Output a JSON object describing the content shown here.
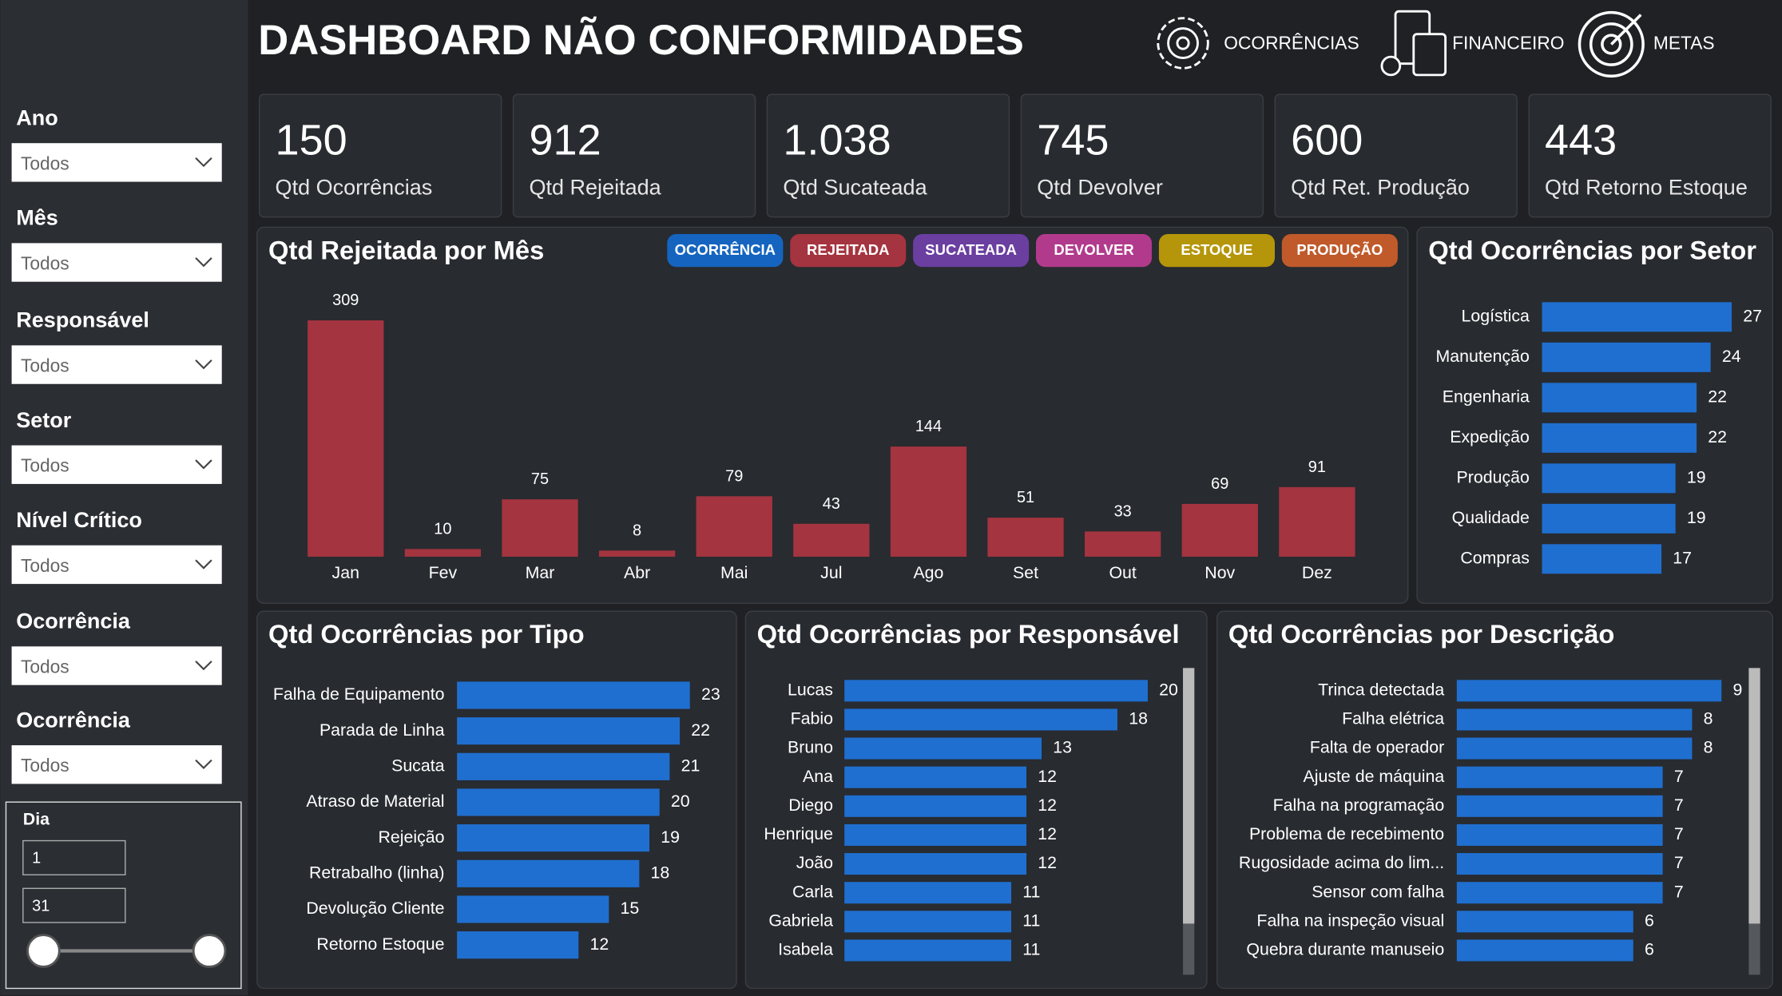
{
  "header": {
    "title": "DASHBOARD NÃO CONFORMIDADES",
    "nav": [
      "OCORRÊNCIAS",
      "FINANCEIRO",
      "METAS"
    ]
  },
  "filters": [
    {
      "label": "Ano",
      "value": "Todos"
    },
    {
      "label": "Mês",
      "value": "Todos"
    },
    {
      "label": "Responsável",
      "value": "Todos"
    },
    {
      "label": "Setor",
      "value": "Todos"
    },
    {
      "label": "Nível Crítico",
      "value": "Todos"
    },
    {
      "label": "Ocorrência",
      "value": "Todos"
    },
    {
      "label": "Ocorrência",
      "value": "Todos"
    }
  ],
  "day_filter": {
    "label": "Dia",
    "min": "1",
    "max": "31"
  },
  "kpis": [
    {
      "value": "150",
      "label": "Qtd Ocorrências"
    },
    {
      "value": "912",
      "label": "Qtd Rejeitada"
    },
    {
      "value": "1.038",
      "label": "Qtd Sucateada"
    },
    {
      "value": "745",
      "label": "Qtd Devolver"
    },
    {
      "value": "600",
      "label": "Qtd Ret. Produção"
    },
    {
      "value": "443",
      "label": "Qtd Retorno Estoque"
    }
  ],
  "chart_data": [
    {
      "type": "bar",
      "title": "Qtd Rejeitada por Mês",
      "categories": [
        "Jan",
        "Fev",
        "Mar",
        "Abr",
        "Mai",
        "Jul",
        "Ago",
        "Set",
        "Out",
        "Nov",
        "Dez"
      ],
      "values": [
        309,
        10,
        75,
        8,
        79,
        43,
        144,
        51,
        33,
        69,
        91
      ],
      "color": "#a4343f",
      "buttons": [
        {
          "label": "OCORRÊNCIA",
          "color": "#1565c0"
        },
        {
          "label": "REJEITADA",
          "color": "#a4343f"
        },
        {
          "label": "SUCATEADA",
          "color": "#6a3fa0"
        },
        {
          "label": "DEVOLVER",
          "color": "#b23a8c"
        },
        {
          "label": "ESTOQUE",
          "color": "#b5960a"
        },
        {
          "label": "PRODUÇÃO",
          "color": "#c05a2a"
        }
      ]
    },
    {
      "type": "barh",
      "title": "Qtd Ocorrências por Setor",
      "categories": [
        "Logística",
        "Manutenção",
        "Engenharia",
        "Expedição",
        "Produção",
        "Qualidade",
        "Compras"
      ],
      "values": [
        27,
        24,
        22,
        22,
        19,
        19,
        17
      ],
      "color": "#1f6fd0"
    },
    {
      "type": "barh",
      "title": "Qtd Ocorrências por Tipo",
      "categories": [
        "Falha de Equipamento",
        "Parada de Linha",
        "Sucata",
        "Atraso de Material",
        "Rejeição",
        "Retrabalho (linha)",
        "Devolução Cliente",
        "Retorno Estoque"
      ],
      "values": [
        23,
        22,
        21,
        20,
        19,
        18,
        15,
        12
      ],
      "color": "#1f6fd0"
    },
    {
      "type": "barh",
      "title": "Qtd Ocorrências por Responsável",
      "categories": [
        "Lucas",
        "Fabio",
        "Bruno",
        "Ana",
        "Diego",
        "Henrique",
        "João",
        "Carla",
        "Gabriela",
        "Isabela"
      ],
      "values": [
        20,
        18,
        13,
        12,
        12,
        12,
        12,
        11,
        11,
        11
      ],
      "color": "#1f6fd0"
    },
    {
      "type": "barh",
      "title": "Qtd Ocorrências por Descrição",
      "categories": [
        "Trinca detectada",
        "Falha elétrica",
        "Falta de operador",
        "Ajuste de máquina",
        "Falha na programação",
        "Problema de recebimento",
        "Rugosidade acima do lim...",
        "Sensor com falha",
        "Falha na inspeção visual",
        "Quebra durante manuseio"
      ],
      "values": [
        9,
        8,
        8,
        7,
        7,
        7,
        7,
        7,
        6,
        6
      ],
      "color": "#1f6fd0"
    }
  ]
}
